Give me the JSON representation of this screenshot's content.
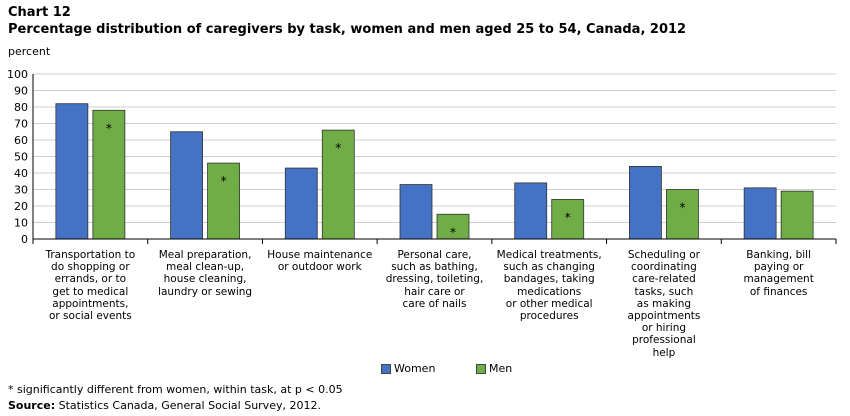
{
  "header": {
    "chart_number": "Chart 12",
    "title": "Percentage distribution  of caregivers by task, women and men aged 25 to 54, Canada, 2012"
  },
  "footnote": "* significantly different from women, within task, at p < 0.05",
  "source": {
    "label": "Source:",
    "text": " Statistics Canada, General Social Survey, 2012."
  },
  "colors": {
    "women": "#4472C4",
    "men": "#70AD47",
    "grid": "#cfcfcf",
    "axis": "#000000"
  },
  "chart_data": {
    "type": "bar",
    "ylabel": "percent",
    "ylim": [
      0,
      100
    ],
    "yticks": [
      0,
      10,
      20,
      30,
      40,
      50,
      60,
      70,
      80,
      90,
      100
    ],
    "grid": true,
    "legend": "bottom-center",
    "categories": [
      [
        "Transportation to",
        "do shopping or",
        "errands, or to",
        "get to medical",
        "appointments,",
        "or social events"
      ],
      [
        "Meal preparation,",
        "meal clean-up,",
        "house cleaning,",
        "laundry or sewing"
      ],
      [
        "House maintenance",
        "or outdoor work"
      ],
      [
        "Personal care,",
        "such as bathing,",
        "dressing, toileting,",
        "hair care or",
        "care of nails"
      ],
      [
        "Medical treatments,",
        "such as changing",
        "bandages, taking",
        "medications",
        "or other medical",
        "procedures"
      ],
      [
        "Scheduling or",
        "coordinating",
        "care-related",
        "tasks, such",
        "as making",
        "appointments",
        "or hiring",
        "professional",
        "help"
      ],
      [
        "Banking, bill",
        "paying or",
        "management",
        "of finances"
      ]
    ],
    "series": [
      {
        "name": "Women",
        "values": [
          82,
          65,
          43,
          33,
          34,
          44,
          31
        ],
        "significant": [
          false,
          false,
          false,
          false,
          false,
          false,
          false
        ]
      },
      {
        "name": "Men",
        "values": [
          78,
          46,
          66,
          15,
          24,
          30,
          29
        ],
        "significant": [
          true,
          true,
          true,
          true,
          true,
          true,
          false
        ]
      }
    ],
    "significance_marker": "*"
  }
}
